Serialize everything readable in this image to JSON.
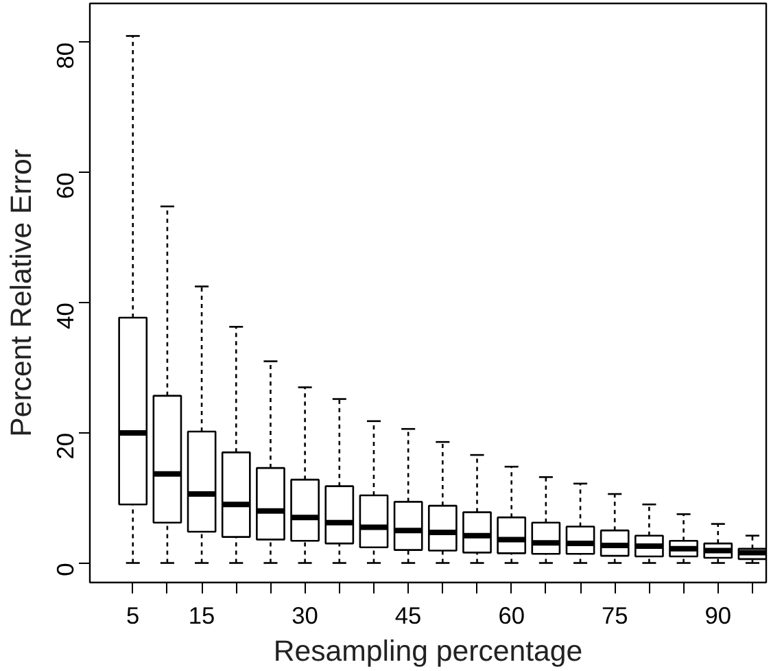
{
  "chart_data": {
    "type": "box",
    "xlabel": "Resampling percentage",
    "ylabel": "Percent Relative Error",
    "categories": [
      "5",
      null,
      "15",
      null,
      null,
      "30",
      null,
      null,
      "45",
      null,
      null,
      "60",
      null,
      null,
      "75",
      null,
      null,
      "90",
      null
    ],
    "ylim": [
      -3,
      86
    ],
    "yticks": [
      0,
      20,
      40,
      60,
      80
    ],
    "grid": false,
    "boxes": [
      {
        "low": 0,
        "q1": 9,
        "median": 20,
        "q3": 37.7,
        "high": 81
      },
      {
        "low": 0,
        "q1": 6.2,
        "median": 13.7,
        "q3": 25.7,
        "high": 54.8
      },
      {
        "low": 0,
        "q1": 4.8,
        "median": 10.6,
        "q3": 20.2,
        "high": 42.5
      },
      {
        "low": 0,
        "q1": 4,
        "median": 9,
        "q3": 17,
        "high": 36.3
      },
      {
        "low": 0,
        "q1": 3.6,
        "median": 8,
        "q3": 14.6,
        "high": 31
      },
      {
        "low": 0,
        "q1": 3.4,
        "median": 7,
        "q3": 12.8,
        "high": 27
      },
      {
        "low": 0,
        "q1": 3,
        "median": 6.2,
        "q3": 11.8,
        "high": 25.2
      },
      {
        "low": 0,
        "q1": 2.4,
        "median": 5.5,
        "q3": 10.4,
        "high": 21.8
      },
      {
        "low": 0,
        "q1": 2,
        "median": 5,
        "q3": 9.4,
        "high": 20.6
      },
      {
        "low": 0,
        "q1": 1.9,
        "median": 4.7,
        "q3": 8.8,
        "high": 18.6
      },
      {
        "low": 0,
        "q1": 1.6,
        "median": 4.2,
        "q3": 7.8,
        "high": 16.6
      },
      {
        "low": 0,
        "q1": 1.5,
        "median": 3.6,
        "q3": 7,
        "high": 14.8
      },
      {
        "low": 0,
        "q1": 1.4,
        "median": 3.1,
        "q3": 6.2,
        "high": 13.2
      },
      {
        "low": 0,
        "q1": 1.4,
        "median": 3,
        "q3": 5.6,
        "high": 12.2
      },
      {
        "low": 0,
        "q1": 1.1,
        "median": 2.7,
        "q3": 5,
        "high": 10.6
      },
      {
        "low": 0,
        "q1": 1,
        "median": 2.6,
        "q3": 4.2,
        "high": 9
      },
      {
        "low": 0,
        "q1": 1,
        "median": 2.2,
        "q3": 3.4,
        "high": 7.5
      },
      {
        "low": 0,
        "q1": 0.8,
        "median": 1.9,
        "q3": 3,
        "high": 6
      },
      {
        "low": 0,
        "q1": 0.6,
        "median": 1.6,
        "q3": 2.2,
        "high": 4.2
      }
    ],
    "color": "#ffffff"
  }
}
